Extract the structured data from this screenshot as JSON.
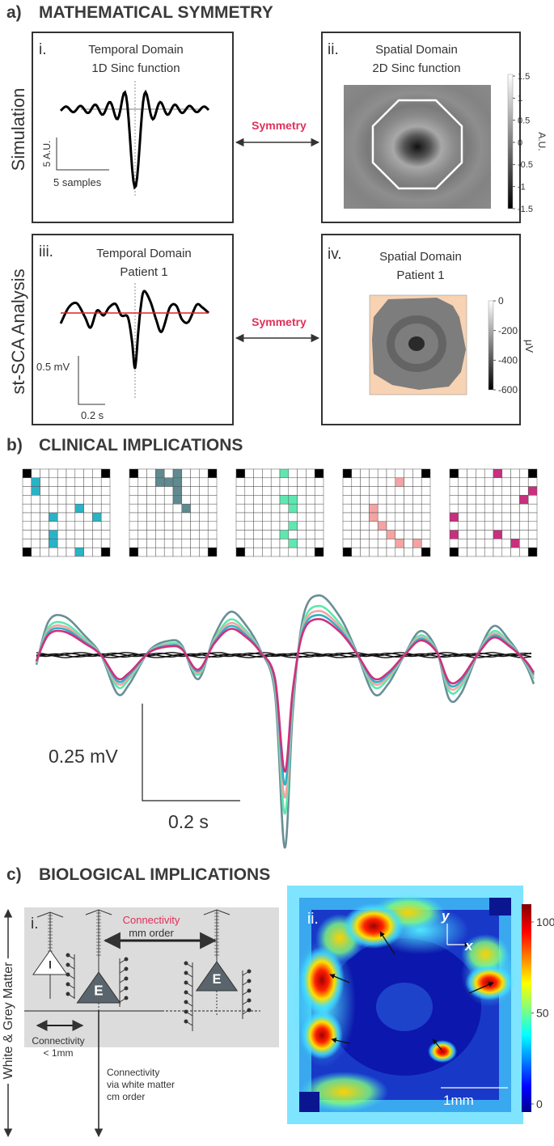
{
  "panel_a": {
    "label": "a)",
    "title": "MATHEMATICAL SYMMETRY",
    "row_labels": [
      "Simulation",
      "st-SCA Analysis"
    ],
    "symmetry_labels": [
      "Symmetry",
      "Symmetry"
    ],
    "i": {
      "number": "i.",
      "title": [
        "Temporal Domain",
        "1D Sinc function"
      ],
      "scale_y": "5 A.U.",
      "scale_x": "5 samples"
    },
    "ii": {
      "number": "ii.",
      "title": [
        "Spatial Domain",
        "2D Sinc function"
      ],
      "colorbar_ticks": [
        1.5,
        1,
        0.5,
        0,
        -0.5,
        -1,
        -1.5
      ],
      "colorbar_unit": "A.U."
    },
    "iii": {
      "number": "iii.",
      "title": [
        "Temporal Domain",
        "Patient 1"
      ],
      "scale_y": "0.5 mV",
      "scale_x": "0.2 s"
    },
    "iv": {
      "number": "iv.",
      "title": [
        "Spatial Domain",
        "Patient 1"
      ],
      "colorbar_ticks": [
        0,
        -200,
        -400,
        -600
      ],
      "colorbar_unit": "μV"
    }
  },
  "panel_b": {
    "label": "b)",
    "title": "CLINICAL IMPLICATIONS",
    "scale_y": "0.25 mV",
    "scale_x": "0.2 s"
  },
  "panel_c": {
    "label": "c)",
    "title": "BIOLOGICAL IMPLICATIONS",
    "i": {
      "number": "i.",
      "long_range": [
        "Connectivity",
        "mm order"
      ],
      "local": [
        "Connectivity",
        "< 1mm"
      ],
      "white_matter": [
        "Connectivity",
        "via white matter",
        "cm order"
      ],
      "neuron_labels": [
        "I",
        "E",
        "E"
      ],
      "axis_label": "White & Grey Matter"
    },
    "ii": {
      "number": "ii.",
      "axis_y": "y",
      "axis_x": "x",
      "scale": "1mm",
      "colorbar_ticks": [
        100,
        50,
        0
      ]
    }
  }
}
